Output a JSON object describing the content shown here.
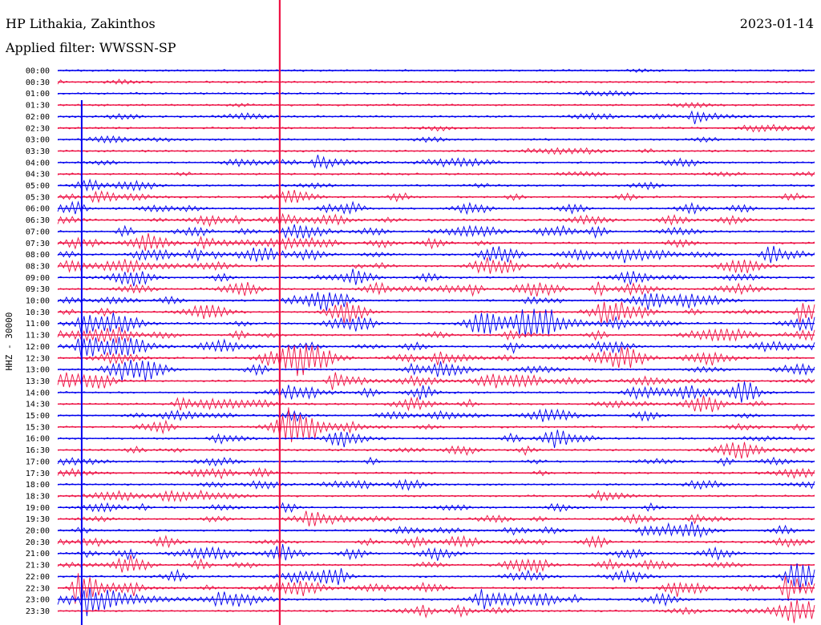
{
  "header": {
    "station": "HP Lithakia, Zakinthos",
    "filter": "Applied filter: WWSSN-SP",
    "date": "2023-01-14"
  },
  "chart_data": {
    "type": "line",
    "title": "HP Lithakia, Zakinthos",
    "subtitle": "Applied filter: WWSSN-SP",
    "date": "2023-01-14",
    "ylabel": "HHZ - 30000",
    "xlabel": "",
    "grid": false,
    "trace_colors": [
      "#0000ee",
      "#ee1144"
    ],
    "row_labels": [
      "00:00",
      "00:30",
      "01:00",
      "01:30",
      "02:00",
      "02:30",
      "03:00",
      "03:30",
      "04:00",
      "04:30",
      "05:00",
      "05:30",
      "06:00",
      "06:30",
      "07:00",
      "07:30",
      "08:00",
      "08:30",
      "09:00",
      "09:30",
      "10:00",
      "10:30",
      "11:00",
      "11:30",
      "12:00",
      "12:30",
      "13:00",
      "13:30",
      "14:00",
      "14:30",
      "15:00",
      "15:30",
      "16:00",
      "16:30",
      "17:00",
      "17:30",
      "18:00",
      "18:30",
      "19:00",
      "19:30",
      "20:00",
      "20:30",
      "21:00",
      "21:30",
      "22:00",
      "22:30",
      "23:00",
      "23:30"
    ],
    "activity": [
      0.1,
      0.12,
      0.12,
      0.15,
      0.3,
      0.3,
      0.25,
      0.25,
      0.45,
      0.3,
      0.5,
      0.6,
      0.8,
      0.7,
      0.9,
      0.9,
      1.0,
      1.0,
      0.95,
      1.0,
      1.0,
      1.0,
      1.0,
      1.0,
      1.0,
      0.9,
      0.9,
      0.85,
      0.85,
      0.8,
      0.75,
      0.7,
      0.7,
      0.65,
      0.6,
      0.55,
      0.55,
      0.55,
      0.6,
      0.7,
      0.75,
      0.85,
      0.85,
      0.85,
      0.8,
      0.8,
      0.75,
      0.7
    ],
    "events": [
      {
        "row": 4,
        "minute": 25.2,
        "amp": 0.9,
        "dur": 0.8
      },
      {
        "row": 8,
        "minute": 10.3,
        "amp": 0.9,
        "dur": 0.9
      },
      {
        "row": 11,
        "minute": 1.5,
        "amp": 0.9,
        "dur": 0.8
      },
      {
        "row": 16,
        "minute": 28.0,
        "amp": 1.2,
        "dur": 1.2
      },
      {
        "row": 21,
        "minute": 29.4,
        "amp": 1.5,
        "dur": 1.0
      },
      {
        "row": 22,
        "minute": 18.3,
        "amp": 1.6,
        "dur": 1.6
      },
      {
        "row": 22,
        "minute": 1.0,
        "amp": 1.4,
        "dur": 1.2
      },
      {
        "row": 24,
        "minute": 1.0,
        "amp": 1.4,
        "dur": 1.2
      },
      {
        "row": 25,
        "minute": 15.0,
        "amp": 1.0,
        "dur": 1.2
      },
      {
        "row": 27,
        "minute": 10.9,
        "amp": 1.1,
        "dur": 1.0
      },
      {
        "row": 31,
        "minute": 9.0,
        "amp": 2.5,
        "dur": 1.2
      },
      {
        "row": 39,
        "minute": 9.9,
        "amp": 1.2,
        "dur": 0.8
      },
      {
        "row": 45,
        "minute": 28.8,
        "amp": 1.8,
        "dur": 0.9
      },
      {
        "row": 45,
        "minute": 0.8,
        "amp": 2.5,
        "dur": 1.0
      },
      {
        "row": 46,
        "minute": 1.2,
        "amp": 2.0,
        "dur": 2.0
      }
    ],
    "spikes": [
      {
        "minute": 8.8,
        "color": "#ee1144"
      },
      {
        "minute": 0.95,
        "color": "#0000ee"
      }
    ]
  }
}
